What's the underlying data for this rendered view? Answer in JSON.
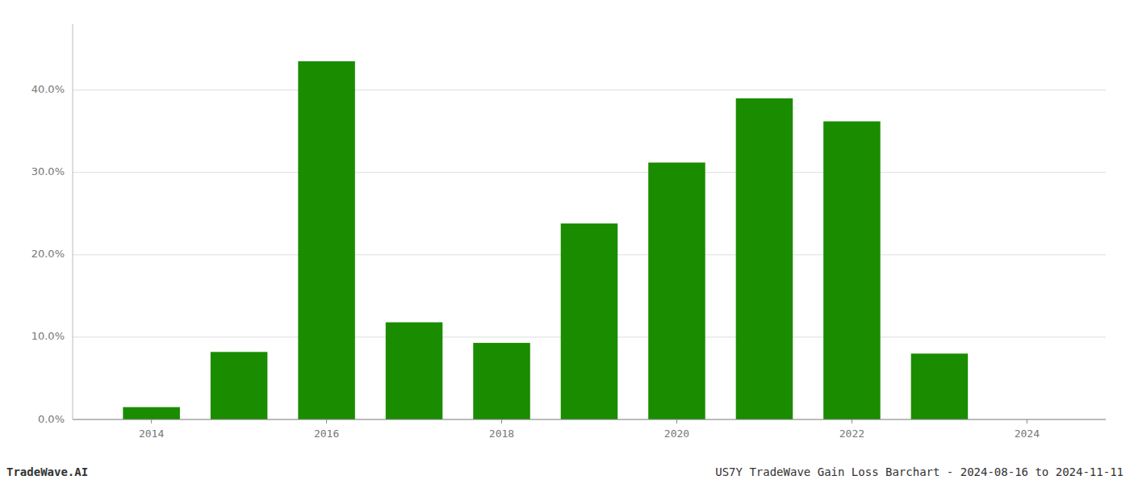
{
  "chart_data": {
    "type": "bar",
    "x": [
      2014,
      2015,
      2016,
      2017,
      2018,
      2019,
      2020,
      2021,
      2022,
      2023
    ],
    "values": [
      0.015,
      0.082,
      0.435,
      0.118,
      0.093,
      0.238,
      0.312,
      0.39,
      0.362,
      0.08
    ],
    "color": "#1a8c00",
    "xlim": [
      2013.1,
      2024.9
    ],
    "xticks": [
      2014,
      2016,
      2018,
      2020,
      2022,
      2024
    ],
    "ylim": [
      0,
      0.48
    ],
    "yticks": [
      {
        "value": 0.0,
        "label": "0.0%"
      },
      {
        "value": 0.1,
        "label": "10.0%"
      },
      {
        "value": 0.2,
        "label": "20.0%"
      },
      {
        "value": 0.3,
        "label": "30.0%"
      },
      {
        "value": 0.4,
        "label": "40.0%"
      }
    ],
    "grid": true,
    "annotations": [
      "TradeWave.AI",
      "US7Y TradeWave Gain Loss Barchart - 2024-08-16 to 2024-11-11"
    ]
  }
}
